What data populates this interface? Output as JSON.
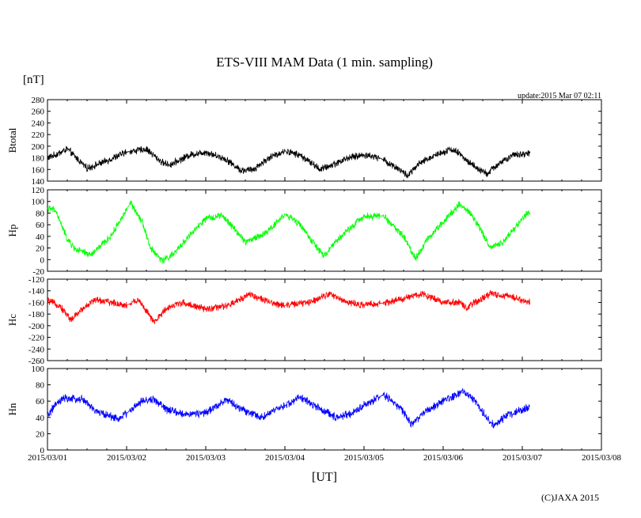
{
  "title": "ETS-VIII MAM Data (1 min. sampling)",
  "unit_label": "[nT]",
  "update_text": "update:2015 Mar 07 02:11",
  "credit": "(C)JAXA 2015",
  "chart_data": [
    {
      "type": "line",
      "name": "Btotal",
      "ylabel": "Btotal",
      "ylim": [
        140,
        280
      ],
      "yticks": [
        140,
        160,
        180,
        200,
        220,
        240,
        260,
        280
      ],
      "color": "#000000",
      "noise": 5,
      "base": [
        [
          0,
          180
        ],
        [
          0.1,
          185
        ],
        [
          0.25,
          195
        ],
        [
          0.5,
          162
        ],
        [
          0.7,
          172
        ],
        [
          1.0,
          190
        ],
        [
          1.25,
          195
        ],
        [
          1.45,
          172
        ],
        [
          1.55,
          168
        ],
        [
          1.8,
          185
        ],
        [
          2.0,
          190
        ],
        [
          2.25,
          178
        ],
        [
          2.45,
          158
        ],
        [
          2.6,
          160
        ],
        [
          2.8,
          180
        ],
        [
          3.0,
          192
        ],
        [
          3.2,
          184
        ],
        [
          3.45,
          160
        ],
        [
          3.6,
          168
        ],
        [
          3.8,
          180
        ],
        [
          4.0,
          185
        ],
        [
          4.2,
          180
        ],
        [
          4.45,
          160
        ],
        [
          4.55,
          149
        ],
        [
          4.7,
          170
        ],
        [
          4.9,
          185
        ],
        [
          5.1,
          195
        ],
        [
          5.2,
          188
        ],
        [
          5.3,
          175
        ],
        [
          5.45,
          160
        ],
        [
          5.55,
          152
        ],
        [
          5.7,
          170
        ],
        [
          5.9,
          185
        ],
        [
          6.1,
          188
        ]
      ]
    },
    {
      "type": "line",
      "name": "Hp",
      "ylabel": "Hp",
      "ylim": [
        -20,
        120
      ],
      "yticks": [
        -20,
        0,
        20,
        40,
        60,
        80,
        100,
        120
      ],
      "color": "#00ff00",
      "noise": 5,
      "base": [
        [
          0,
          88
        ],
        [
          0.1,
          85
        ],
        [
          0.25,
          35
        ],
        [
          0.35,
          18
        ],
        [
          0.55,
          8
        ],
        [
          0.8,
          40
        ],
        [
          1.05,
          98
        ],
        [
          1.2,
          65
        ],
        [
          1.3,
          20
        ],
        [
          1.45,
          -2
        ],
        [
          1.6,
          10
        ],
        [
          1.75,
          35
        ],
        [
          2.0,
          70
        ],
        [
          2.2,
          76
        ],
        [
          2.35,
          55
        ],
        [
          2.5,
          30
        ],
        [
          2.75,
          45
        ],
        [
          3.0,
          78
        ],
        [
          3.2,
          60
        ],
        [
          3.35,
          30
        ],
        [
          3.5,
          5
        ],
        [
          3.6,
          25
        ],
        [
          3.75,
          45
        ],
        [
          4.0,
          75
        ],
        [
          4.25,
          75
        ],
        [
          4.5,
          40
        ],
        [
          4.65,
          2
        ],
        [
          4.8,
          35
        ],
        [
          5.0,
          65
        ],
        [
          5.2,
          95
        ],
        [
          5.35,
          80
        ],
        [
          5.5,
          45
        ],
        [
          5.6,
          20
        ],
        [
          5.75,
          30
        ],
        [
          6.0,
          70
        ],
        [
          6.1,
          85
        ]
      ]
    },
    {
      "type": "line",
      "name": "Hc",
      "ylabel": "Hc",
      "ylim": [
        -260,
        -120
      ],
      "yticks": [
        -260,
        -240,
        -220,
        -200,
        -180,
        -160,
        -140,
        -120
      ],
      "color": "#ff0000",
      "noise": 5,
      "base": [
        [
          0,
          -157
        ],
        [
          0.15,
          -165
        ],
        [
          0.3,
          -190
        ],
        [
          0.45,
          -170
        ],
        [
          0.6,
          -155
        ],
        [
          0.8,
          -160
        ],
        [
          1.0,
          -165
        ],
        [
          1.15,
          -155
        ],
        [
          1.25,
          -175
        ],
        [
          1.35,
          -195
        ],
        [
          1.5,
          -170
        ],
        [
          1.7,
          -160
        ],
        [
          2.0,
          -172
        ],
        [
          2.3,
          -165
        ],
        [
          2.55,
          -145
        ],
        [
          2.8,
          -160
        ],
        [
          3.0,
          -165
        ],
        [
          3.3,
          -160
        ],
        [
          3.55,
          -145
        ],
        [
          3.8,
          -160
        ],
        [
          4.0,
          -165
        ],
        [
          4.3,
          -160
        ],
        [
          4.6,
          -150
        ],
        [
          4.75,
          -145
        ],
        [
          5.0,
          -160
        ],
        [
          5.2,
          -160
        ],
        [
          5.3,
          -170
        ],
        [
          5.4,
          -160
        ],
        [
          5.6,
          -145
        ],
        [
          5.85,
          -150
        ],
        [
          6.1,
          -160
        ]
      ]
    },
    {
      "type": "line",
      "name": "Hn",
      "ylabel": "Hn",
      "ylim": [
        0,
        100
      ],
      "yticks": [
        0,
        20,
        40,
        60,
        80,
        100
      ],
      "color": "#0000ff",
      "noise": 4,
      "base": [
        [
          0,
          42
        ],
        [
          0.1,
          55
        ],
        [
          0.2,
          63
        ],
        [
          0.45,
          62
        ],
        [
          0.6,
          48
        ],
        [
          0.9,
          38
        ],
        [
          1.2,
          60
        ],
        [
          1.35,
          62
        ],
        [
          1.5,
          50
        ],
        [
          1.7,
          44
        ],
        [
          2.0,
          45
        ],
        [
          2.25,
          62
        ],
        [
          2.45,
          50
        ],
        [
          2.7,
          40
        ],
        [
          2.95,
          52
        ],
        [
          3.2,
          65
        ],
        [
          3.45,
          50
        ],
        [
          3.65,
          40
        ],
        [
          3.85,
          45
        ],
        [
          4.0,
          55
        ],
        [
          4.25,
          68
        ],
        [
          4.45,
          52
        ],
        [
          4.6,
          32
        ],
        [
          4.75,
          45
        ],
        [
          5.0,
          60
        ],
        [
          5.25,
          72
        ],
        [
          5.4,
          60
        ],
        [
          5.55,
          40
        ],
        [
          5.65,
          30
        ],
        [
          5.8,
          42
        ],
        [
          6.1,
          53
        ]
      ]
    }
  ],
  "x_axis": {
    "label": "[UT]",
    "tick_labels": [
      "2015/03/01",
      "2015/03/02",
      "2015/03/03",
      "2015/03/04",
      "2015/03/05",
      "2015/03/06",
      "2015/03/07",
      "2015/03/08"
    ],
    "range_days": [
      0,
      7
    ],
    "data_end_day": 6.1
  }
}
